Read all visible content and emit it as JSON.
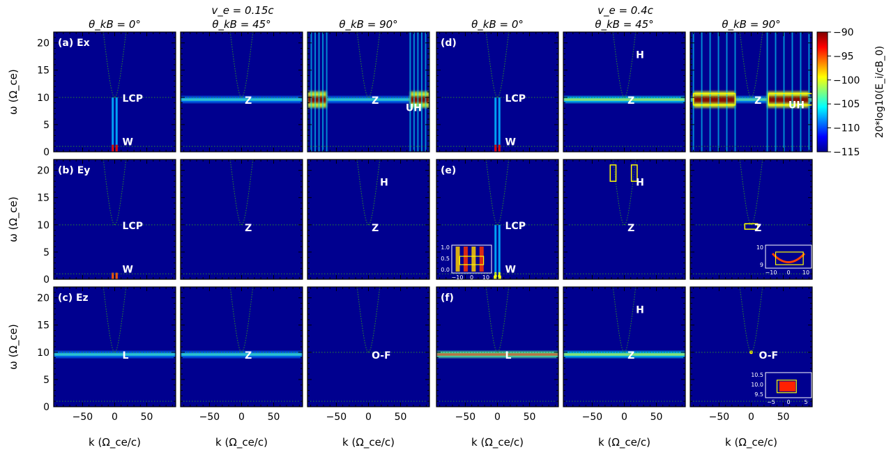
{
  "figure": {
    "group_titles": [
      "v_e = 0.15c",
      "v_e = 0.4c"
    ],
    "column_titles": [
      "θ_kB = 0°",
      "θ_kB = 45°",
      "θ_kB = 90°",
      "θ_kB = 0°",
      "θ_kB = 45°",
      "θ_kB = 90°"
    ],
    "row_labels": [
      "(a) Ex",
      "(b) Ey",
      "(c) Ez",
      "(d)",
      "(e)",
      "(f)"
    ],
    "xlabel": "k (Ω_ce/c)",
    "ylabel": "ω (Ω_ce)",
    "colorbar": {
      "label": "20*log10(E_i/cB_0)",
      "ticks": [
        "−90",
        "−95",
        "−100",
        "−105",
        "−110",
        "−115"
      ],
      "range": [
        -115,
        -90
      ]
    },
    "colors": {
      "background": "#00008f",
      "dispersion_curve": "#2e8b2e",
      "annotation": "#ffffff",
      "highlight_box": "#ffff00"
    }
  },
  "chart_data": {
    "type": "heatmap",
    "x_range": [
      -95,
      95
    ],
    "y_range": [
      0,
      22
    ],
    "x_ticks": [
      -50,
      0,
      50
    ],
    "x_tick_labels": [
      "−50",
      "0",
      "50"
    ],
    "y_ticks": [
      0,
      5,
      10,
      15,
      20
    ],
    "y_tick_labels": [
      "0",
      "5",
      "10",
      "15",
      "20"
    ],
    "panels": [
      {
        "row": 0,
        "col": 0,
        "labels": [
          {
            "text": "LCP",
            "x": 12,
            "y": 9.2
          },
          {
            "text": "W",
            "x": 12,
            "y": 1.2
          }
        ],
        "features": [
          {
            "kind": "spike",
            "k": -3,
            "w0": 0,
            "w1": 10,
            "level": 0.9
          },
          {
            "kind": "spike",
            "k": 3,
            "w0": 0,
            "w1": 10,
            "level": 0.9
          }
        ]
      },
      {
        "row": 0,
        "col": 1,
        "labels": [
          {
            "text": "Z",
            "x": 5,
            "y": 8.8
          }
        ],
        "features": [
          {
            "kind": "band",
            "k0": -95,
            "k1": 95,
            "w": 9.6,
            "level": 0.45
          }
        ]
      },
      {
        "row": 0,
        "col": 2,
        "labels": [
          {
            "text": "Z",
            "x": 5,
            "y": 8.8
          },
          {
            "text": "UH",
            "x": 58,
            "y": 7.5
          }
        ],
        "features": [
          {
            "kind": "band",
            "k0": -95,
            "k1": 95,
            "w": 9.6,
            "level": 0.45
          },
          {
            "kind": "blob",
            "k0": -95,
            "k1": -65,
            "w": 9.6,
            "level": 1.0
          },
          {
            "kind": "blob",
            "k0": 65,
            "k1": 95,
            "w": 9.6,
            "level": 1.0
          }
        ]
      },
      {
        "row": 0,
        "col": 3,
        "labels": [
          {
            "text": "LCP",
            "x": 12,
            "y": 9.2
          },
          {
            "text": "W",
            "x": 12,
            "y": 1.2
          }
        ],
        "features": [
          {
            "kind": "spike",
            "k": -3,
            "w0": 0,
            "w1": 10,
            "level": 0.9
          },
          {
            "kind": "spike",
            "k": 3,
            "w0": 0,
            "w1": 10,
            "level": 0.9
          }
        ]
      },
      {
        "row": 0,
        "col": 4,
        "labels": [
          {
            "text": "H",
            "x": 18,
            "y": 17.2
          },
          {
            "text": "Z",
            "x": 5,
            "y": 8.8
          }
        ],
        "features": [
          {
            "kind": "band",
            "k0": -95,
            "k1": 95,
            "w": 9.6,
            "level": 0.6
          }
        ]
      },
      {
        "row": 0,
        "col": 5,
        "labels": [
          {
            "text": "Z",
            "x": 5,
            "y": 8.8
          },
          {
            "text": "UH",
            "x": 58,
            "y": 8.0
          }
        ],
        "features": [
          {
            "kind": "band",
            "k0": -95,
            "k1": 95,
            "w": 9.6,
            "level": 0.5
          },
          {
            "kind": "blob",
            "k0": -90,
            "k1": -25,
            "w": 9.6,
            "level": 1.0
          },
          {
            "kind": "blob",
            "k0": 25,
            "k1": 90,
            "w": 9.6,
            "level": 1.0
          }
        ],
        "boxes": [
          {
            "k0": -90,
            "k1": -25,
            "w0": 8.6,
            "w1": 10.7
          },
          {
            "k0": 27,
            "k1": 95,
            "w0": 8.6,
            "w1": 10.7
          }
        ]
      },
      {
        "row": 1,
        "col": 0,
        "labels": [
          {
            "text": "LCP",
            "x": 12,
            "y": 9.2
          },
          {
            "text": "W",
            "x": 12,
            "y": 1.2
          }
        ],
        "features": [
          {
            "kind": "spike",
            "k": -3,
            "w0": 0,
            "w1": 1.2,
            "level": 0.8
          },
          {
            "kind": "spike",
            "k": 3,
            "w0": 0,
            "w1": 1.2,
            "level": 0.8
          }
        ]
      },
      {
        "row": 1,
        "col": 1,
        "labels": [
          {
            "text": "Z",
            "x": 5,
            "y": 8.8
          }
        ],
        "features": []
      },
      {
        "row": 1,
        "col": 2,
        "labels": [
          {
            "text": "H",
            "x": 18,
            "y": 17.2
          },
          {
            "text": "Z",
            "x": 5,
            "y": 8.8
          }
        ],
        "features": []
      },
      {
        "row": 1,
        "col": 3,
        "labels": [
          {
            "text": "LCP",
            "x": 12,
            "y": 9.2
          },
          {
            "text": "W",
            "x": 12,
            "y": 1.2
          }
        ],
        "features": [
          {
            "kind": "spike",
            "k": -3,
            "w0": 0,
            "w1": 10,
            "level": 0.6
          },
          {
            "kind": "spike",
            "k": 3,
            "w0": 0,
            "w1": 10,
            "level": 0.6
          }
        ],
        "boxes": [
          {
            "k0": -5,
            "k1": 5,
            "w0": 0,
            "w1": 0.6
          }
        ]
      },
      {
        "row": 1,
        "col": 4,
        "labels": [
          {
            "text": "H",
            "x": 18,
            "y": 17.2
          },
          {
            "text": "Z",
            "x": 5,
            "y": 8.8
          }
        ],
        "features": [],
        "boxes": [
          {
            "k0": -22,
            "k1": -13,
            "w0": 18,
            "w1": 21
          },
          {
            "k0": 11,
            "k1": 20,
            "w0": 18,
            "w1": 21
          }
        ]
      },
      {
        "row": 1,
        "col": 5,
        "labels": [
          {
            "text": "Z",
            "x": 5,
            "y": 8.8
          }
        ],
        "features": [],
        "boxes": [
          {
            "k0": -10,
            "k1": 10,
            "w0": 9.2,
            "w1": 10.2
          }
        ]
      },
      {
        "row": 2,
        "col": 0,
        "labels": [
          {
            "text": "L",
            "x": 12,
            "y": 8.8
          }
        ],
        "features": [
          {
            "kind": "band",
            "k0": -95,
            "k1": 95,
            "w": 9.6,
            "level": 0.45
          }
        ]
      },
      {
        "row": 2,
        "col": 1,
        "labels": [
          {
            "text": "Z",
            "x": 5,
            "y": 8.8
          }
        ],
        "features": [
          {
            "kind": "band",
            "k0": -95,
            "k1": 95,
            "w": 9.6,
            "level": 0.45
          }
        ]
      },
      {
        "row": 2,
        "col": 2,
        "labels": [
          {
            "text": "O-F",
            "x": 5,
            "y": 8.8
          }
        ],
        "features": []
      },
      {
        "row": 2,
        "col": 3,
        "labels": [
          {
            "text": "L",
            "x": 12,
            "y": 8.8
          }
        ],
        "features": [
          {
            "kind": "band",
            "k0": -95,
            "k1": 95,
            "w": 9.6,
            "level": 0.85
          }
        ]
      },
      {
        "row": 2,
        "col": 4,
        "labels": [
          {
            "text": "H",
            "x": 18,
            "y": 17.2
          },
          {
            "text": "Z",
            "x": 5,
            "y": 8.8
          }
        ],
        "features": [
          {
            "kind": "band",
            "k0": -95,
            "k1": 95,
            "w": 9.6,
            "level": 0.6
          }
        ]
      },
      {
        "row": 2,
        "col": 5,
        "labels": [
          {
            "text": "O-F",
            "x": 12,
            "y": 8.8
          }
        ],
        "features": [
          {
            "kind": "dot",
            "k": 0,
            "w": 10,
            "level": 1.0
          }
        ]
      }
    ],
    "insets": [
      {
        "panel_row": 1,
        "panel_col": 3,
        "x_ticks": [
          "−10",
          "0",
          "10"
        ],
        "y_ticks": [
          "1.0",
          "0.5",
          "0.0"
        ]
      },
      {
        "panel_row": 1,
        "panel_col": 5,
        "x_ticks": [
          "−10",
          "0",
          "10"
        ],
        "y_ticks": [
          "10",
          "9"
        ]
      },
      {
        "panel_row": 2,
        "panel_col": 5,
        "x_ticks": [
          "−5",
          "0",
          "5"
        ],
        "y_ticks": [
          "10.5",
          "10.0",
          "9.5"
        ]
      }
    ]
  }
}
